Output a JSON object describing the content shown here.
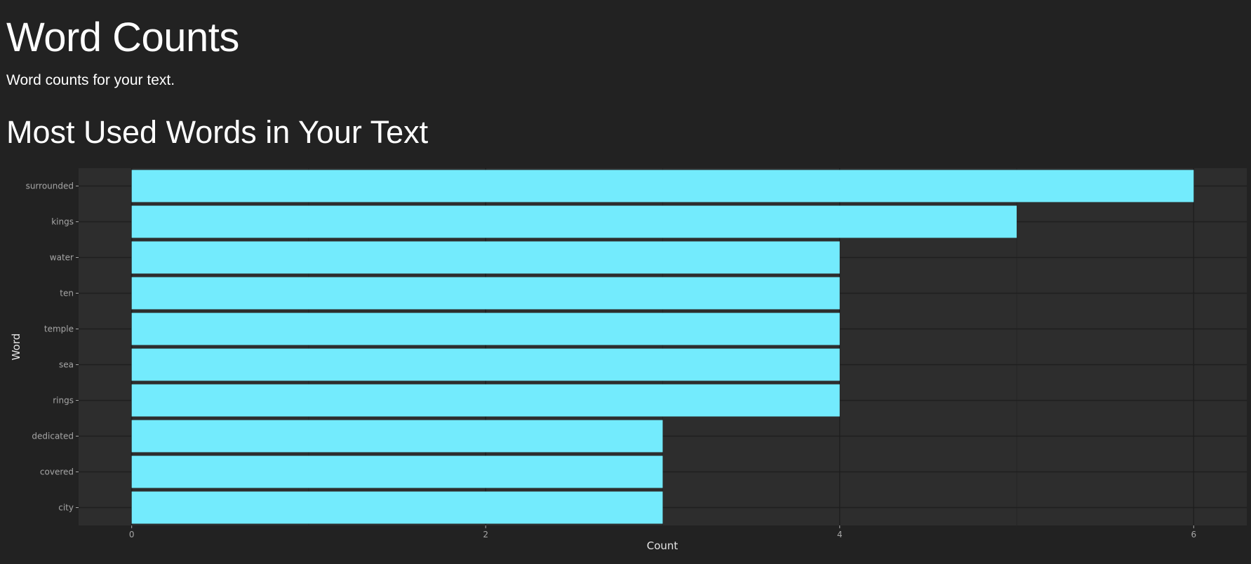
{
  "page": {
    "title": "Word Counts",
    "subtitle": "Word counts for your text.",
    "section_title": "Most Used Words in Your Text"
  },
  "colors": {
    "background": "#222222",
    "panel": "#2d2d2d",
    "grid_major": "#1f1f1f",
    "grid_minor": "#262626",
    "bar": "#73ebfd",
    "axis_text": "#a6a6a6",
    "axis_title": "#e6e6e6"
  },
  "chart_data": {
    "type": "bar",
    "orientation": "horizontal",
    "title": "Most Used Words in Your Text",
    "xlabel": "Count",
    "ylabel": "Word",
    "categories": [
      "surrounded",
      "kings",
      "water",
      "ten",
      "temple",
      "sea",
      "rings",
      "dedicated",
      "covered",
      "city"
    ],
    "values": [
      6,
      5,
      4,
      4,
      4,
      4,
      4,
      3,
      3,
      3
    ],
    "xlim": [
      -0.3,
      6.3
    ],
    "xticks": [
      0,
      2,
      4,
      6
    ],
    "grid": true,
    "legend": "none"
  }
}
